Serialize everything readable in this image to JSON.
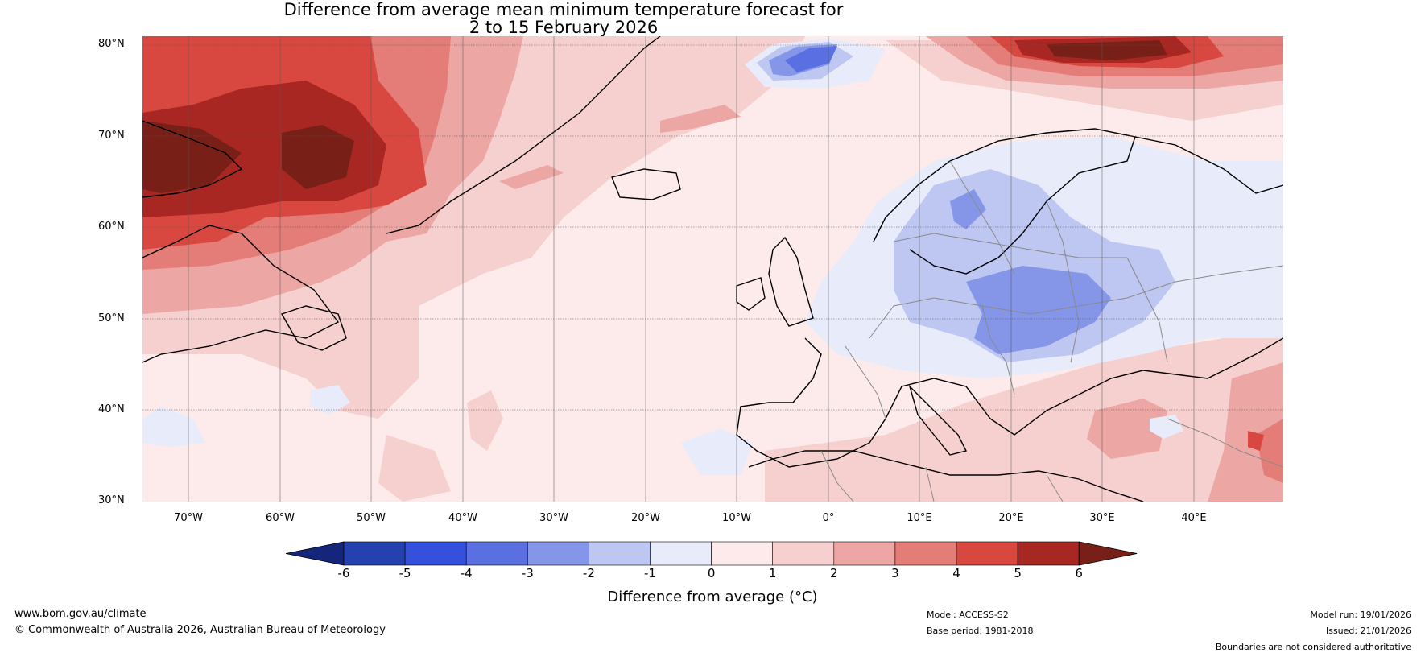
{
  "title": {
    "line1": "Difference from average mean minimum temperature forecast for",
    "line2": "2 to 15 February 2026"
  },
  "map": {
    "lat_labels": [
      "80°N",
      "70°N",
      "60°N",
      "50°N",
      "40°N",
      "30°N"
    ],
    "lon_labels": [
      "70°W",
      "60°W",
      "50°W",
      "40°W",
      "30°W",
      "20°W",
      "10°W",
      "0°",
      "10°E",
      "20°E",
      "30°E",
      "40°E"
    ],
    "anomaly_regions": [
      {
        "area": "Labrador Sea / Baffin Island",
        "anomaly_c": "5 to 6+"
      },
      {
        "area": "Svalbard / Barents Sea",
        "anomaly_c": "5 to 6+"
      },
      {
        "area": "Greenland Sea (east of Greenland)",
        "anomaly_c": "-4 to -2"
      },
      {
        "area": "Central and Eastern Europe",
        "anomaly_c": "-3 to -1"
      },
      {
        "area": "Scandinavia",
        "anomaly_c": "-2 to 0"
      },
      {
        "area": "North Africa / Middle East",
        "anomaly_c": "1 to 4"
      }
    ]
  },
  "colorbar": {
    "title": "Difference from average (°C)",
    "ticks": [
      "-6",
      "-5",
      "-4",
      "-3",
      "-2",
      "-1",
      "0",
      "1",
      "2",
      "3",
      "4",
      "5",
      "6"
    ],
    "colors": [
      "#15257a",
      "#2540b0",
      "#3450dc",
      "#5a6fe2",
      "#8595e8",
      "#bec6f2",
      "#e8ebfa",
      "#fcebea",
      "#f5d0cf",
      "#eca6a3",
      "#e47d77",
      "#d94840",
      "#a82722",
      "#782018"
    ]
  },
  "footer": {
    "website": "www.bom.gov.au/climate",
    "copyright": "© Commonwealth of Australia 2026, Australian Bureau of Meteorology",
    "model": "Model: ACCESS-S2",
    "base_period": "Base period: 1981-2018",
    "model_run": "Model run: 19/01/2026",
    "issued": "Issued: 21/01/2026",
    "disclaimer": "Boundaries are not considered authoritative"
  }
}
